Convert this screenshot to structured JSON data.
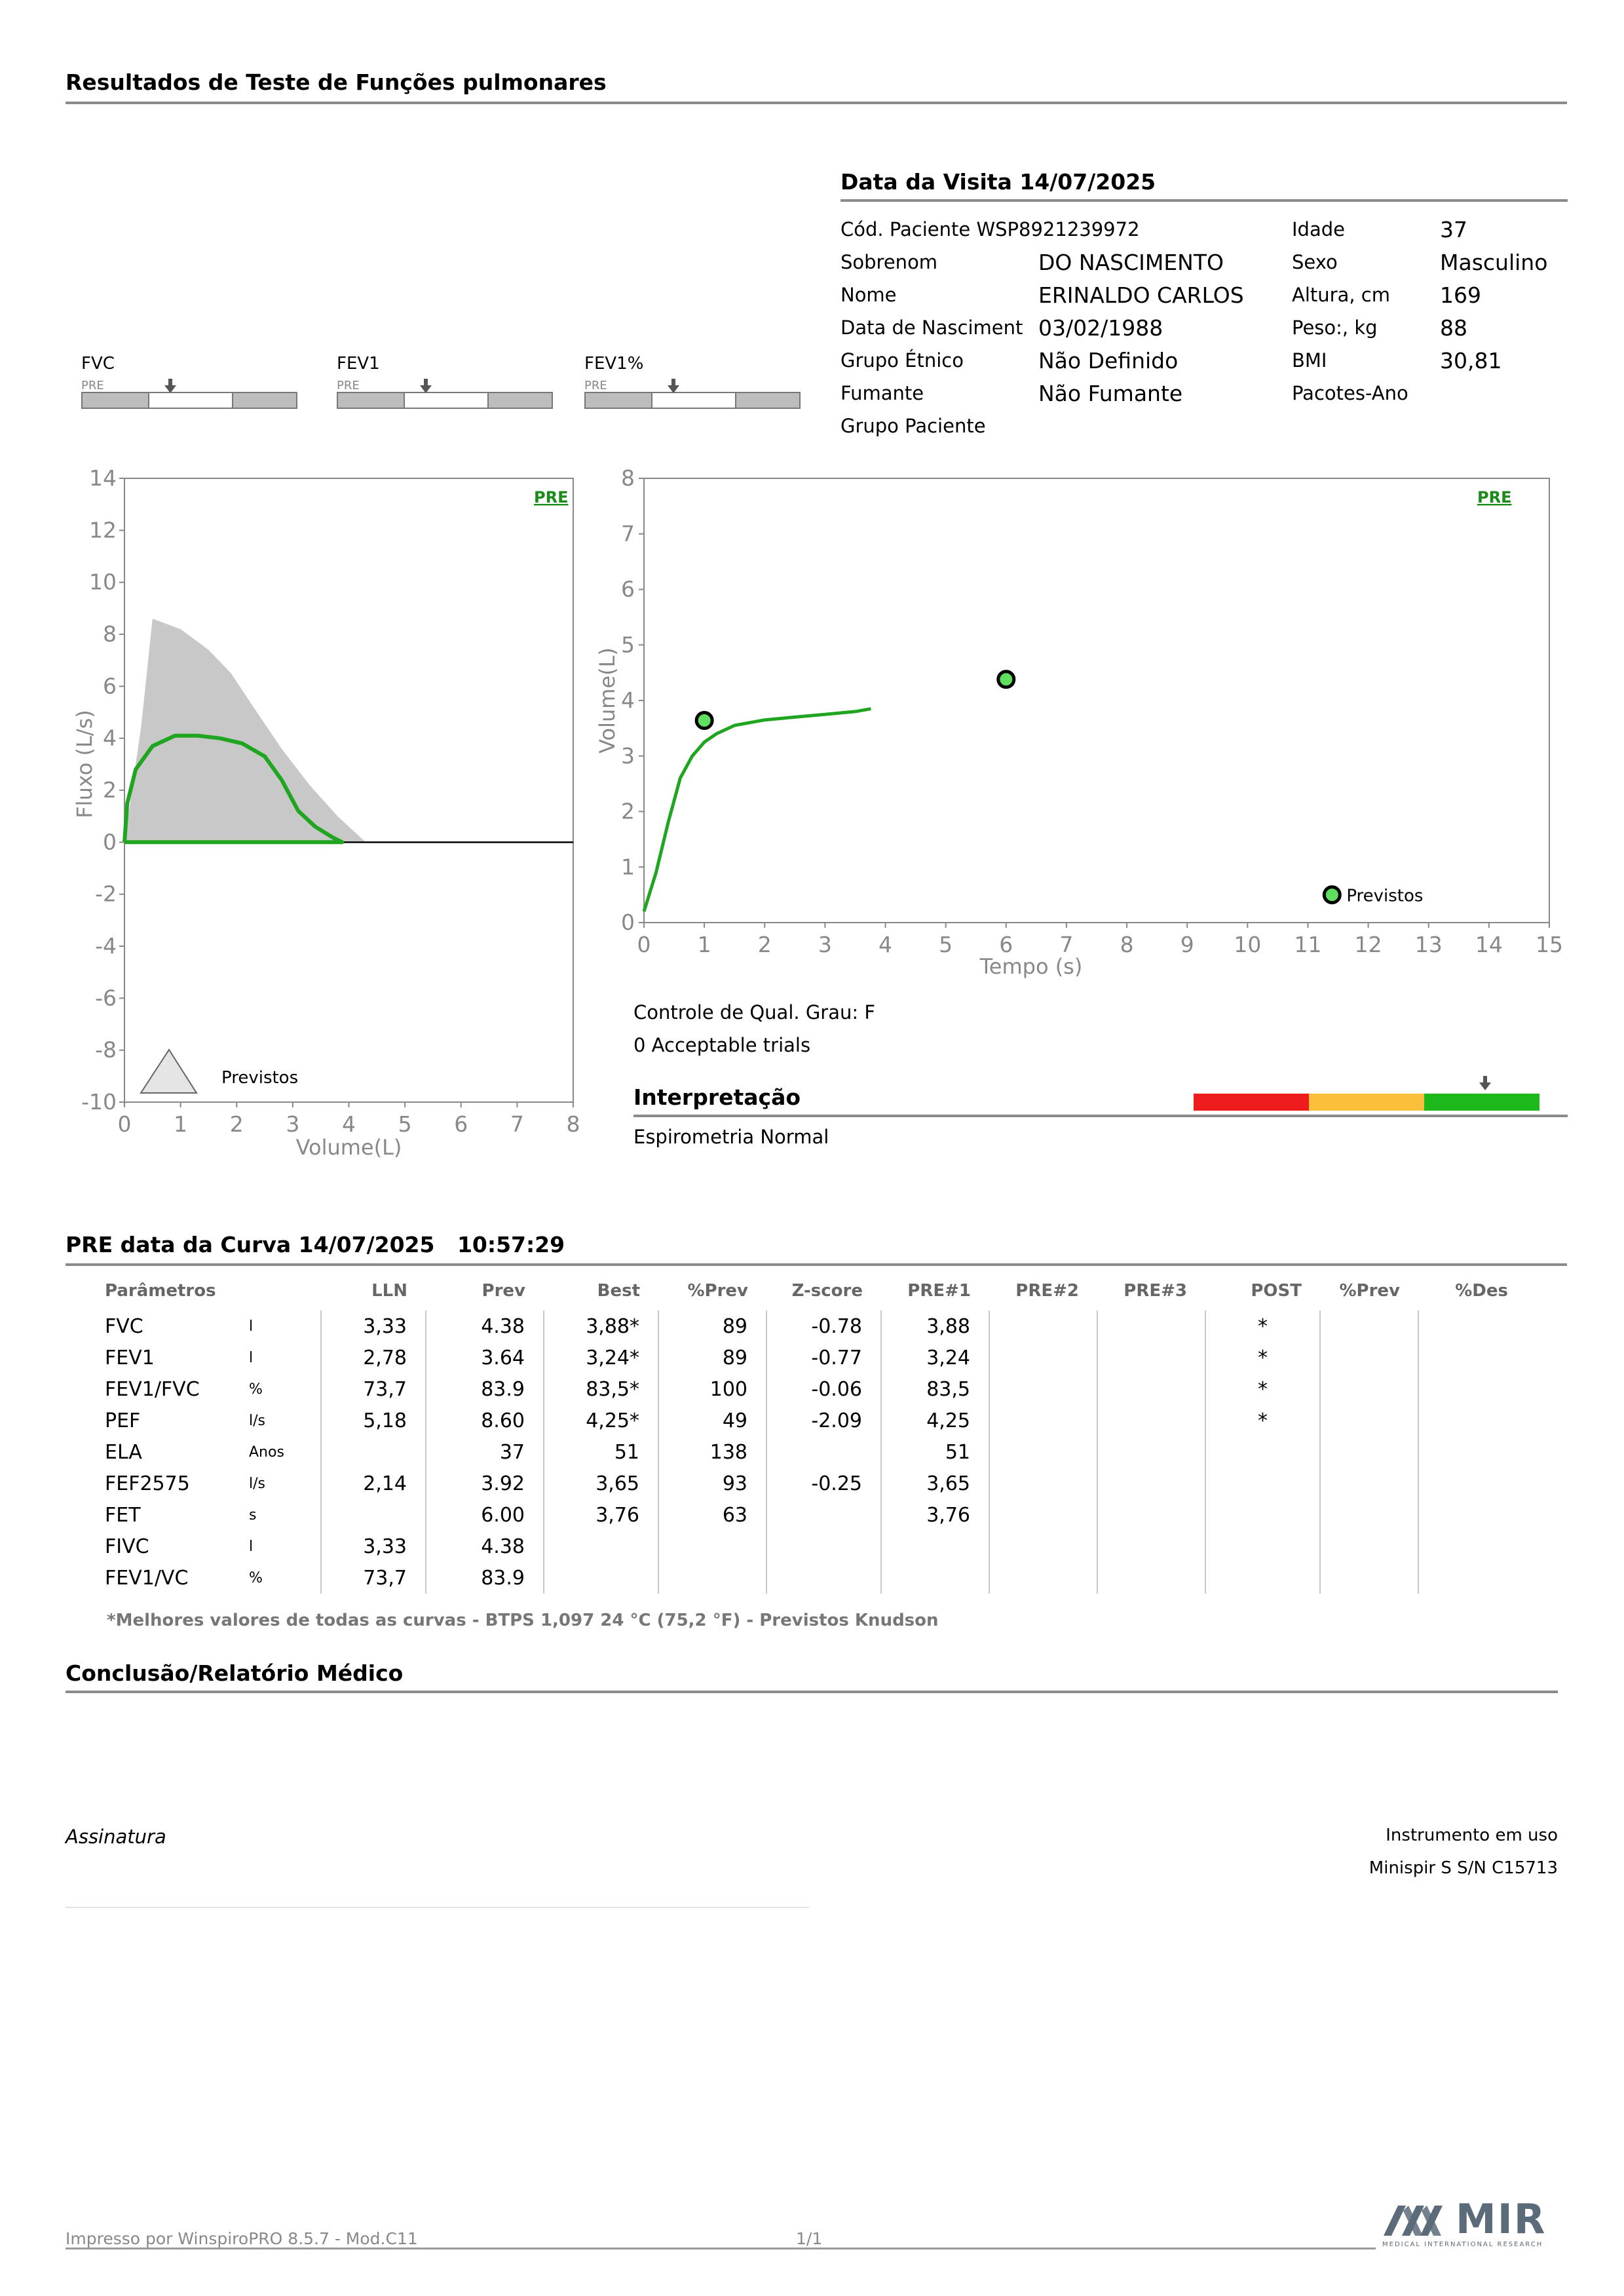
{
  "report_title": "Resultados de Teste de Funções pulmonares",
  "visit": {
    "heading": "Data da Visita 14/07/2025",
    "patient_code": "Cód. Paciente WSP8921239972",
    "fields": [
      {
        "label": "Sobrenom",
        "value": "DO NASCIMENTO"
      },
      {
        "label": "Nome",
        "value": "ERINALDO CARLOS"
      },
      {
        "label": "Data de Nasciment",
        "value": "03/02/1988"
      },
      {
        "label": "Grupo Étnico",
        "value": "Não Definido"
      },
      {
        "label": "Fumante",
        "value": "Não Fumante"
      },
      {
        "label": "Grupo Paciente",
        "value": ""
      }
    ],
    "right_fields": [
      {
        "label": "Idade",
        "value": "37"
      },
      {
        "label": "Sexo",
        "value": "Masculino"
      },
      {
        "label": "Altura, cm",
        "value": "169"
      },
      {
        "label": "Peso:, kg",
        "value": "88"
      },
      {
        "label": "BMI",
        "value": "30,81"
      },
      {
        "label": "Pacotes-Ano",
        "value": ""
      }
    ]
  },
  "gauges": [
    {
      "label": "FVC",
      "sub": "PRE"
    },
    {
      "label": "FEV1",
      "sub": "PRE"
    },
    {
      "label": "FEV1%",
      "sub": "PRE"
    }
  ],
  "flow_chart": {
    "tag": "PRE",
    "ylabel": "Fluxo (L/s)",
    "xlabel": "Volume(L)",
    "xlim": [
      0,
      8
    ],
    "ylim": [
      -10,
      14
    ],
    "x_ticks": [
      "0",
      "1",
      "2",
      "3",
      "4",
      "5",
      "6",
      "7",
      "8"
    ],
    "y_ticks": [
      "14",
      "12",
      "10",
      "8",
      "6",
      "4",
      "2",
      "0",
      "-2",
      "-4",
      "-6",
      "-8",
      "-10"
    ],
    "legend": "Previstos",
    "colors": {
      "measured": "#1fa51f",
      "predicted": "#c8c8c8"
    }
  },
  "volume_chart": {
    "tag": "PRE",
    "ylabel": "Volume(L)",
    "xlabel": "Tempo (s)",
    "xlim": [
      0,
      15
    ],
    "ylim": [
      0,
      8
    ],
    "x_ticks": [
      "0",
      "1",
      "2",
      "3",
      "4",
      "5",
      "6",
      "7",
      "8",
      "9",
      "10",
      "11",
      "12",
      "13",
      "14",
      "15"
    ],
    "y_ticks": [
      "8",
      "7",
      "6",
      "5",
      "4",
      "3",
      "2",
      "1",
      "0"
    ],
    "legend": "Previstos"
  },
  "chart_data": [
    {
      "type": "area",
      "series": [
        {
          "name": "Previstos",
          "points": [
            [
              0,
              0
            ],
            [
              0.3,
              4.5
            ],
            [
              0.5,
              8.6
            ],
            [
              1,
              8.2
            ],
            [
              1.5,
              7.4
            ],
            [
              1.9,
              6.5
            ],
            [
              2.3,
              5.2
            ],
            [
              2.8,
              3.6
            ],
            [
              3.3,
              2.2
            ],
            [
              3.8,
              1.0
            ],
            [
              4.3,
              0
            ]
          ]
        },
        {
          "name": "",
          "points": [
            [
              0,
              0
            ],
            [
              0.05,
              1.5
            ],
            [
              0.2,
              2.8
            ],
            [
              0.5,
              3.7
            ],
            [
              0.9,
              4.1
            ],
            [
              1.3,
              4.1
            ],
            [
              1.7,
              4.0
            ],
            [
              2.1,
              3.8
            ],
            [
              2.5,
              3.3
            ],
            [
              2.8,
              2.4
            ],
            [
              3.1,
              1.2
            ],
            [
              3.4,
              0.6
            ],
            [
              3.7,
              0.2
            ],
            [
              3.88,
              0
            ],
            [
              0,
              0
            ]
          ]
        }
      ]
    },
    {
      "type": "line",
      "series": [
        {
          "name": "",
          "points": [
            [
              0,
              0.2
            ],
            [
              0.2,
              0.9
            ],
            [
              0.4,
              1.8
            ],
            [
              0.6,
              2.6
            ],
            [
              0.8,
              3.0
            ],
            [
              1.0,
              3.25
            ],
            [
              1.2,
              3.4
            ],
            [
              1.5,
              3.55
            ],
            [
              2.0,
              3.65
            ],
            [
              2.5,
              3.7
            ],
            [
              3.0,
              3.75
            ],
            [
              3.5,
              3.8
            ],
            [
              3.76,
              3.85
            ]
          ]
        }
      ],
      "markers": [
        {
          "x": 1,
          "y": 3.64
        },
        {
          "x": 6,
          "y": 4.38
        },
        {
          "x": 11.4,
          "y": 0.5,
          "label": "Previstos"
        }
      ]
    }
  ],
  "quality": {
    "grade": "Controle de Qual. Grau: F",
    "trials": "0 Acceptable trials"
  },
  "interpretation": {
    "heading": "Interpretação",
    "text": "Espirometria Normal",
    "bar_colors": [
      "#ee1c1c",
      "#fbbf3c",
      "#1cb81c"
    ]
  },
  "curve_heading": "PRE data da Curva 14/07/2025   10:57:29",
  "table": {
    "headers": [
      "Parâmetros",
      "",
      "LLN",
      "Prev",
      "Best",
      "%Prev",
      "Z-score",
      "PRE#1",
      "PRE#2",
      "PRE#3",
      "POST",
      "%Prev",
      "%Des"
    ],
    "rows": [
      [
        "FVC",
        "l",
        "3,33",
        "4.38",
        "3,88*",
        "89",
        "-0.78",
        "3,88",
        "",
        "",
        "*",
        "",
        ""
      ],
      [
        "FEV1",
        "l",
        "2,78",
        "3.64",
        "3,24*",
        "89",
        "-0.77",
        "3,24",
        "",
        "",
        "*",
        "",
        ""
      ],
      [
        "FEV1/FVC",
        "%",
        "73,7",
        "83.9",
        "83,5*",
        "100",
        "-0.06",
        "83,5",
        "",
        "",
        "*",
        "",
        ""
      ],
      [
        "PEF",
        "l/s",
        "5,18",
        "8.60",
        "4,25*",
        "49",
        "-2.09",
        "4,25",
        "",
        "",
        "*",
        "",
        ""
      ],
      [
        "ELA",
        "Anos",
        "",
        "37",
        "51",
        "138",
        "",
        "51",
        "",
        "",
        "",
        "",
        ""
      ],
      [
        "FEF2575",
        "l/s",
        "2,14",
        "3.92",
        "3,65",
        "93",
        "-0.25",
        "3,65",
        "",
        "",
        "",
        "",
        ""
      ],
      [
        "FET",
        "s",
        "",
        "6.00",
        "3,76",
        "63",
        "",
        "3,76",
        "",
        "",
        "",
        "",
        ""
      ],
      [
        "FIVC",
        "l",
        "3,33",
        "4.38",
        "",
        "",
        "",
        "",
        "",
        "",
        "",
        "",
        ""
      ],
      [
        "FEV1/VC",
        "%",
        "73,7",
        "83.9",
        "",
        "",
        "",
        "",
        "",
        "",
        "",
        "",
        ""
      ]
    ],
    "note": "*Melhores valores de todas as curvas - BTPS  1,097  24 °C  (75,2 °F) - Previstos Knudson"
  },
  "conclusion_heading": "Conclusão/Relatório Médico",
  "signature_label": "Assinatura",
  "instrument_label": "Instrumento em uso",
  "instrument_value": "Minispir S S/N C15713",
  "footer": {
    "printed_by": "Impresso por WinspiroPRO  8.5.7 - Mod.C11",
    "page": "1/1",
    "logo": "MIR",
    "logo_sub": "MEDICAL INTERNATIONAL RESEARCH",
    "logo_color": "#5c6b7a"
  }
}
